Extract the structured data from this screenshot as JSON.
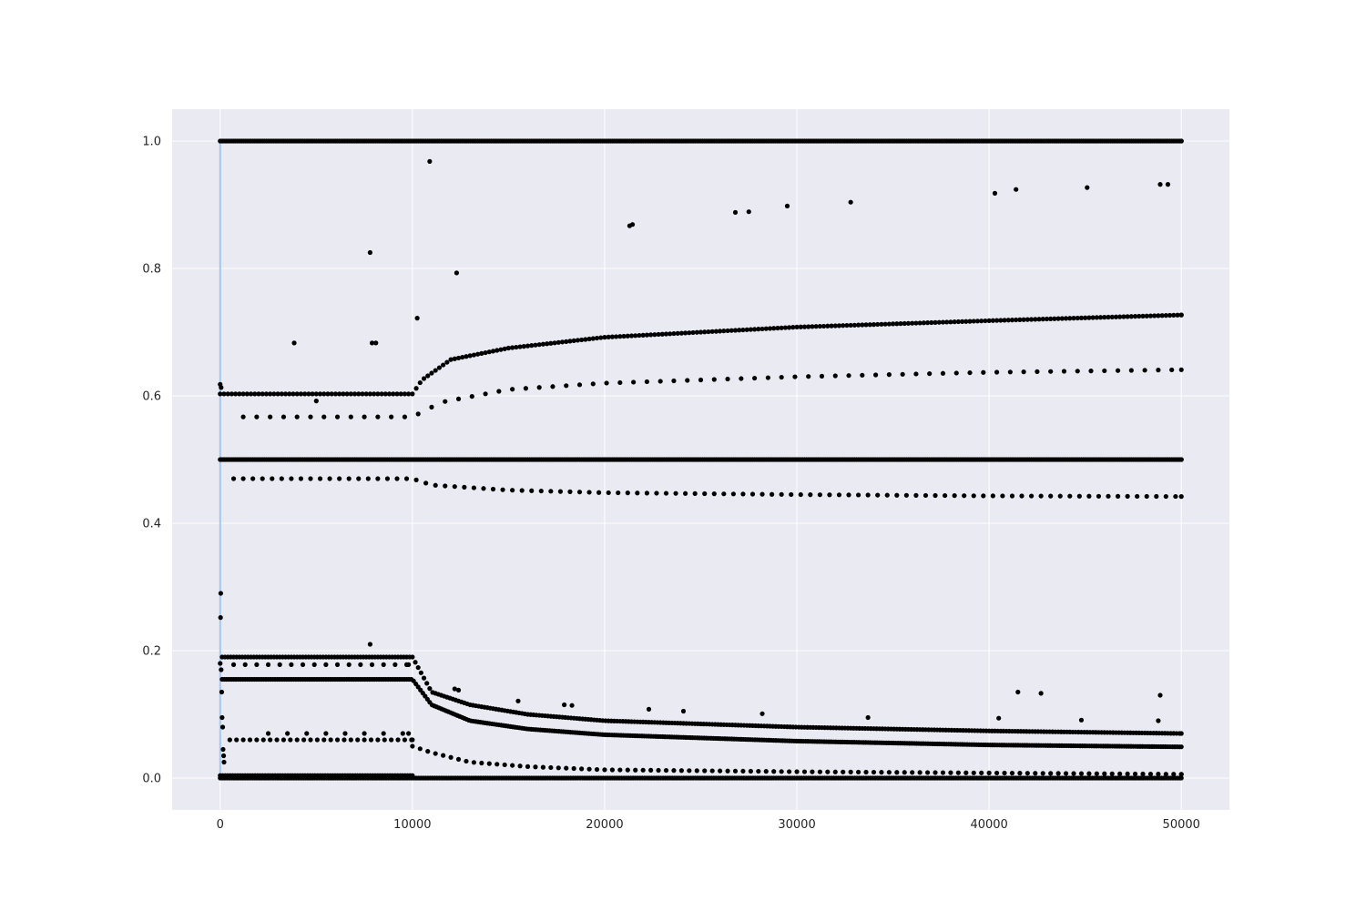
{
  "chart_data": {
    "type": "scatter",
    "title": "",
    "xlabel": "",
    "ylabel": "",
    "xlim": [
      -2500,
      52500
    ],
    "ylim": [
      -0.05,
      1.05
    ],
    "x_ticks": [
      0,
      10000,
      20000,
      30000,
      40000,
      50000
    ],
    "x_tick_labels": [
      "0",
      "10000",
      "20000",
      "30000",
      "40000",
      "50000"
    ],
    "y_ticks": [
      0.0,
      0.2,
      0.4,
      0.6,
      0.8,
      1.0
    ],
    "y_tick_labels": [
      "0.0",
      "0.2",
      "0.4",
      "0.6",
      "0.8",
      "1.0"
    ],
    "grid": true,
    "legend": "none",
    "colors": {
      "background": "#eaeaf2",
      "grid": "#ffffff",
      "points": "#000000",
      "reference_line": "#a1c9f4"
    },
    "reference_line": {
      "x": 0,
      "y_range": [
        0.0,
        1.0
      ]
    },
    "bands": [
      {
        "x_range": [
          0,
          50000
        ],
        "y_points": [
          [
            0,
            1.0
          ],
          [
            10000,
            1.0
          ],
          [
            50000,
            1.0
          ]
        ],
        "step": 100
      },
      {
        "x_range": [
          0,
          50000
        ],
        "y_points": [
          [
            0,
            0.5
          ],
          [
            10000,
            0.5
          ],
          [
            50000,
            0.5
          ]
        ],
        "step": 100
      },
      {
        "x_range": [
          0,
          50000
        ],
        "y_points": [
          [
            0,
            0.0
          ],
          [
            10000,
            0.0
          ],
          [
            50000,
            0.0
          ]
        ],
        "step": 120
      },
      {
        "x_range": [
          0,
          50000
        ],
        "y_points": [
          [
            0,
            0.603
          ],
          [
            10000,
            0.603
          ],
          [
            10500,
            0.625
          ],
          [
            12000,
            0.657
          ],
          [
            15000,
            0.675
          ],
          [
            20000,
            0.692
          ],
          [
            30000,
            0.708
          ],
          [
            40000,
            0.718
          ],
          [
            50000,
            0.727
          ]
        ],
        "step": 200
      },
      {
        "x_range": [
          1200,
          50000
        ],
        "y_points": [
          [
            1200,
            0.567
          ],
          [
            10000,
            0.567
          ],
          [
            11500,
            0.59
          ],
          [
            15000,
            0.61
          ],
          [
            20000,
            0.62
          ],
          [
            30000,
            0.63
          ],
          [
            40000,
            0.637
          ],
          [
            50000,
            0.641
          ]
        ],
        "step": 700
      },
      {
        "x_range": [
          700,
          50000
        ],
        "y_points": [
          [
            700,
            0.47
          ],
          [
            10000,
            0.47
          ],
          [
            11000,
            0.46
          ],
          [
            15000,
            0.452
          ],
          [
            20000,
            0.448
          ],
          [
            30000,
            0.445
          ],
          [
            40000,
            0.443
          ],
          [
            50000,
            0.442
          ]
        ],
        "step": 500
      },
      {
        "x_range": [
          100,
          50000
        ],
        "y_points": [
          [
            100,
            0.19
          ],
          [
            10000,
            0.19
          ],
          [
            11000,
            0.135
          ],
          [
            13000,
            0.115
          ],
          [
            16000,
            0.1
          ],
          [
            20000,
            0.09
          ],
          [
            30000,
            0.08
          ],
          [
            40000,
            0.074
          ],
          [
            50000,
            0.07
          ]
        ],
        "step": 150
      },
      {
        "x_range": [
          100,
          50000
        ],
        "y_points": [
          [
            100,
            0.155
          ],
          [
            10000,
            0.155
          ],
          [
            11000,
            0.115
          ],
          [
            13000,
            0.09
          ],
          [
            16000,
            0.077
          ],
          [
            20000,
            0.068
          ],
          [
            30000,
            0.058
          ],
          [
            40000,
            0.052
          ],
          [
            50000,
            0.049
          ]
        ],
        "step": 120
      },
      {
        "x_range": [
          500,
          10000
        ],
        "y_points": [
          [
            500,
            0.06
          ],
          [
            10000,
            0.06
          ]
        ],
        "step": 350
      },
      {
        "x_range": [
          10000,
          50000
        ],
        "y_points": [
          [
            10000,
            0.05
          ],
          [
            11000,
            0.04
          ],
          [
            13000,
            0.025
          ],
          [
            16000,
            0.018
          ],
          [
            20000,
            0.013
          ],
          [
            30000,
            0.01
          ],
          [
            40000,
            0.008
          ],
          [
            50000,
            0.006
          ]
        ],
        "step": 400
      },
      {
        "x_range": [
          0,
          10000
        ],
        "y_points": [
          [
            0,
            0.004
          ],
          [
            10000,
            0.004
          ]
        ],
        "step": 130
      },
      {
        "x_range": [
          700,
          9800
        ],
        "y_points": [
          [
            700,
            0.178
          ],
          [
            9800,
            0.178
          ]
        ],
        "step": 600
      },
      {
        "x_range": [
          2500,
          9800
        ],
        "y_points": [
          [
            2500,
            0.07
          ],
          [
            9800,
            0.07
          ]
        ],
        "step": 1000
      }
    ],
    "points": [
      [
        0,
        0.618
      ],
      [
        50,
        0.613
      ],
      [
        30,
        0.29
      ],
      [
        20,
        0.252
      ],
      [
        0,
        0.18
      ],
      [
        50,
        0.17
      ],
      [
        80,
        0.135
      ],
      [
        100,
        0.095
      ],
      [
        130,
        0.08
      ],
      [
        150,
        0.045
      ],
      [
        180,
        0.035
      ],
      [
        200,
        0.025
      ],
      [
        3850,
        0.683
      ],
      [
        7800,
        0.825
      ],
      [
        7900,
        0.683
      ],
      [
        8100,
        0.683
      ],
      [
        5000,
        0.592
      ],
      [
        10250,
        0.722
      ],
      [
        10900,
        0.968
      ],
      [
        12300,
        0.793
      ],
      [
        21300,
        0.867
      ],
      [
        21450,
        0.869
      ],
      [
        26800,
        0.888
      ],
      [
        27500,
        0.889
      ],
      [
        29500,
        0.898
      ],
      [
        32800,
        0.904
      ],
      [
        40300,
        0.918
      ],
      [
        41400,
        0.924
      ],
      [
        45100,
        0.927
      ],
      [
        48900,
        0.932
      ],
      [
        49300,
        0.932
      ],
      [
        7800,
        0.21
      ],
      [
        12200,
        0.14
      ],
      [
        12400,
        0.138
      ],
      [
        15500,
        0.121
      ],
      [
        17900,
        0.115
      ],
      [
        18300,
        0.114
      ],
      [
        22300,
        0.108
      ],
      [
        24100,
        0.105
      ],
      [
        28200,
        0.101
      ],
      [
        33700,
        0.095
      ],
      [
        41500,
        0.135
      ],
      [
        42700,
        0.133
      ],
      [
        48900,
        0.13
      ],
      [
        40500,
        0.094
      ],
      [
        44800,
        0.091
      ],
      [
        48800,
        0.09
      ]
    ]
  }
}
